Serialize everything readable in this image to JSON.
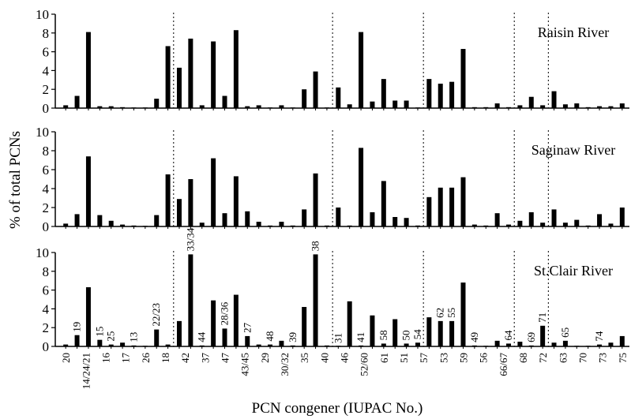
{
  "chart_data": {
    "type": "bar",
    "ylabel": "% of total PCNs",
    "xlabel": "PCN congener (IUPAC No.)",
    "ylim": [
      0,
      10
    ],
    "yticks": [
      0,
      2,
      4,
      6,
      8,
      10
    ],
    "x_tick_labels": [
      "20",
      "14/24/21",
      "16",
      "17",
      "26",
      "18",
      "42",
      "37",
      "47",
      "43/45",
      "29",
      "30/32",
      "35",
      "40",
      "46",
      "52/60",
      "61",
      "51",
      "57",
      "53",
      "59",
      "56",
      "66/67",
      "68",
      "72",
      "63",
      "70",
      "73",
      "75"
    ],
    "group_dividers_after_bar": [
      9,
      23,
      31,
      39,
      42
    ],
    "panels": [
      {
        "title": "Raisin River",
        "values": [
          0.3,
          1.3,
          8.1,
          0.2,
          0.2,
          0.1,
          0.0,
          0.0,
          1.0,
          6.6,
          4.3,
          7.4,
          0.3,
          7.1,
          1.3,
          8.3,
          0.2,
          0.3,
          0.0,
          0.3,
          0.0,
          2.0,
          3.9,
          0.0,
          2.2,
          0.4,
          8.1,
          0.7,
          3.1,
          0.8,
          0.8,
          0.0,
          3.1,
          2.6,
          2.8,
          6.3,
          0.1,
          0.1,
          0.5,
          0.1,
          0.3,
          1.2,
          0.3,
          1.8,
          0.4,
          0.5,
          0.1,
          0.2,
          0.2,
          0.5
        ]
      },
      {
        "title": "Saginaw River",
        "values": [
          0.3,
          1.3,
          7.4,
          1.2,
          0.6,
          0.2,
          0.1,
          0.0,
          1.2,
          5.5,
          2.9,
          5.0,
          0.4,
          7.2,
          1.4,
          5.3,
          1.6,
          0.5,
          0.1,
          0.5,
          0.1,
          1.8,
          5.6,
          0.1,
          2.0,
          0.1,
          8.3,
          1.5,
          4.8,
          1.0,
          0.9,
          0.1,
          3.1,
          4.1,
          4.1,
          5.2,
          0.2,
          0.1,
          1.4,
          0.2,
          0.6,
          1.5,
          0.4,
          1.8,
          0.4,
          0.7,
          0.1,
          1.3,
          0.3,
          2.0
        ]
      },
      {
        "title": "St.Clair River",
        "values": [
          0.2,
          1.2,
          6.3,
          0.7,
          0.2,
          0.4,
          0.1,
          0.0,
          1.8,
          0.2,
          2.7,
          9.8,
          0.1,
          4.9,
          1.9,
          5.5,
          1.1,
          0.2,
          0.2,
          0.6,
          0.1,
          4.2,
          9.8,
          0.1,
          0.0,
          4.8,
          0.1,
          3.3,
          0.3,
          2.9,
          0.3,
          0.4,
          3.1,
          2.7,
          2.7,
          6.8,
          0.1,
          0.0,
          0.6,
          0.3,
          0.5,
          0.1,
          2.2,
          0.4,
          0.6,
          0.0,
          0.0,
          0.2,
          0.4,
          1.1
        ]
      }
    ],
    "annotations": [
      {
        "text": "19",
        "bar": 1
      },
      {
        "text": "15",
        "bar": 3
      },
      {
        "text": "25",
        "bar": 4
      },
      {
        "text": "13",
        "bar": 6
      },
      {
        "text": "22/23",
        "bar": 8
      },
      {
        "text": "33/34",
        "bar": 11
      },
      {
        "text": "44",
        "bar": 12
      },
      {
        "text": "28/36",
        "bar": 14
      },
      {
        "text": "27",
        "bar": 16
      },
      {
        "text": "48",
        "bar": 18
      },
      {
        "text": "39",
        "bar": 20
      },
      {
        "text": "38",
        "bar": 22
      },
      {
        "text": "31",
        "bar": 24
      },
      {
        "text": "41",
        "bar": 26
      },
      {
        "text": "58",
        "bar": 28
      },
      {
        "text": "50",
        "bar": 30
      },
      {
        "text": "54",
        "bar": 31
      },
      {
        "text": "62",
        "bar": 33
      },
      {
        "text": "55",
        "bar": 34
      },
      {
        "text": "49",
        "bar": 36
      },
      {
        "text": "64",
        "bar": 39
      },
      {
        "text": "69",
        "bar": 41
      },
      {
        "text": "71",
        "bar": 42
      },
      {
        "text": "65",
        "bar": 44
      },
      {
        "text": "74",
        "bar": 47
      }
    ]
  }
}
